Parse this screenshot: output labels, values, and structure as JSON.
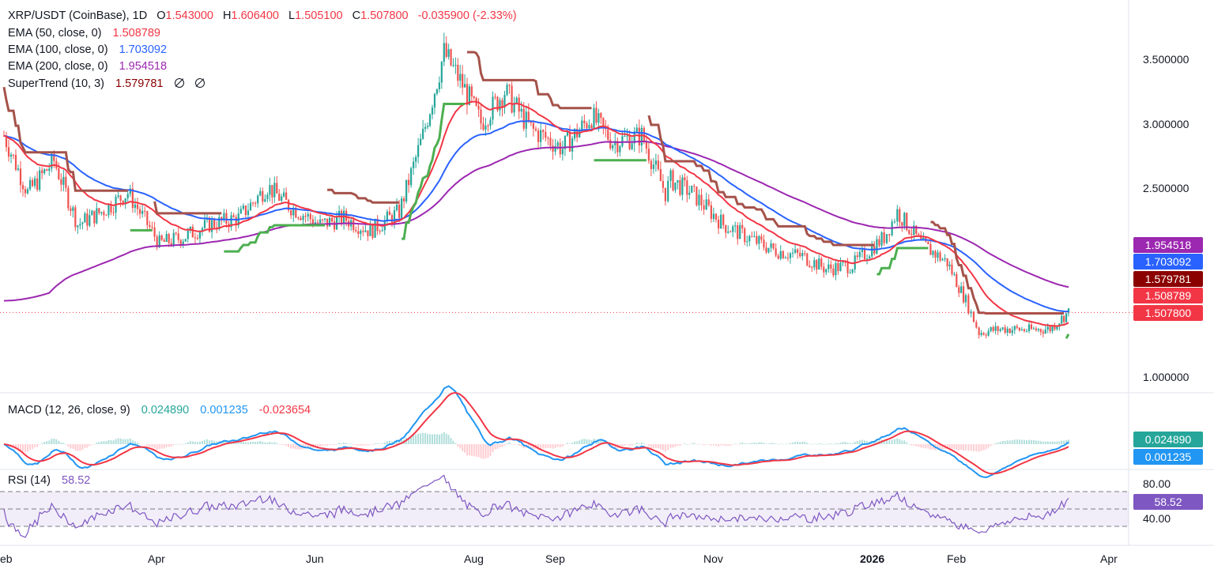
{
  "header": {
    "symbol": "XRP/USDT (CoinBase), 1D",
    "o_label": "O",
    "o_value": "1.543000",
    "h_label": "H",
    "h_value": "1.606400",
    "l_label": "L",
    "l_value": "1.505100",
    "c_label": "C",
    "c_value": "1.507800",
    "change": "-0.035900 (-2.33%)"
  },
  "indicators": {
    "ema50": {
      "label": "EMA (50, close, 0)",
      "value": "1.508789",
      "color": "#f23645"
    },
    "ema100": {
      "label": "EMA (100, close, 0)",
      "value": "1.703092",
      "color": "#2962ff"
    },
    "ema200": {
      "label": "EMA (200, close, 0)",
      "value": "1.954518",
      "color": "#9c27b0"
    },
    "supertrend": {
      "label": "SuperTrend (10, 3)",
      "value": "1.579781",
      "color": "#8b0000",
      "up_color": "#4caf50",
      "down_color": "#a5524a"
    }
  },
  "macd": {
    "label": "MACD (12, 26, close, 9)",
    "histogram": "0.024890",
    "macd_value": "0.001235",
    "signal_value": "-0.023654",
    "hist_color": "#26a69a",
    "macd_color": "#2196f3",
    "signal_color": "#f23645"
  },
  "rsi": {
    "label": "RSI (14)",
    "value": "58.52",
    "color": "#7e57c2"
  },
  "price_tags": {
    "ema200": "1.954518",
    "ema100": "1.703092",
    "supertrend": "1.579781",
    "ema50": "1.508789",
    "last": "1.507800"
  },
  "macd_tags": {
    "histogram": "0.024890",
    "macd": "0.001235"
  },
  "rsi_tag": "58.52",
  "price_axis": [
    "3.500000",
    "3.000000",
    "2.500000",
    "1.000000"
  ],
  "rsi_axis": [
    "80.00",
    "40.00"
  ],
  "time_axis": [
    "eb",
    "Apr",
    "Jun",
    "Aug",
    "Sep",
    "Nov",
    "2026",
    "Feb",
    "Apr"
  ],
  "colors": {
    "up": "#26a69a",
    "down": "#ef5350",
    "bg": "#ffffff"
  },
  "chart_data": {
    "type": "candlestick",
    "title": "XRP/USDT (CoinBase), 1D",
    "x": [
      "2025-02-01",
      "2025-02-10",
      "2025-02-20",
      "2025-03-01",
      "2025-03-10",
      "2025-03-20",
      "2025-04-01",
      "2025-04-10",
      "2025-04-20",
      "2025-05-01",
      "2025-05-12",
      "2025-05-20",
      "2025-06-01",
      "2025-06-10",
      "2025-06-20",
      "2025-07-01",
      "2025-07-10",
      "2025-07-18",
      "2025-07-25",
      "2025-08-01",
      "2025-08-10",
      "2025-08-20",
      "2025-09-01",
      "2025-09-12",
      "2025-09-20",
      "2025-10-01",
      "2025-10-10",
      "2025-10-12",
      "2025-10-20",
      "2025-11-01",
      "2025-11-10",
      "2025-11-20",
      "2025-12-01",
      "2025-12-10",
      "2025-12-20",
      "2026-01-01",
      "2026-01-06",
      "2026-01-15",
      "2026-01-25",
      "2026-02-01",
      "2026-02-06",
      "2026-02-15",
      "2026-02-25",
      "2026-03-05",
      "2026-03-12"
    ],
    "close": [
      2.9,
      2.45,
      2.7,
      2.2,
      2.3,
      2.45,
      2.05,
      2.1,
      2.2,
      2.25,
      2.5,
      2.35,
      2.2,
      2.25,
      2.15,
      2.3,
      2.9,
      3.55,
      3.3,
      3.0,
      3.25,
      2.95,
      2.8,
      3.05,
      2.85,
      2.9,
      2.45,
      2.55,
      2.45,
      2.2,
      2.1,
      2.0,
      1.95,
      1.85,
      1.88,
      2.1,
      2.3,
      2.05,
      1.9,
      1.6,
      1.35,
      1.38,
      1.37,
      1.38,
      1.51
    ],
    "ema50_last": 1.508789,
    "ema100_last": 1.703092,
    "ema200_last": 1.954518,
    "supertrend_last": 1.579781,
    "ohlc_last": {
      "open": 1.543,
      "high": 1.6064,
      "low": 1.5051,
      "close": 1.5078
    },
    "ylim": [
      0.95,
      3.75
    ],
    "macd": {
      "histogram_last": 0.02489,
      "macd_last": 0.001235,
      "signal_last": -0.023654
    },
    "rsi": {
      "last": 58.52,
      "upper": 70,
      "middle": 50,
      "lower": 30,
      "ylim": [
        20,
        90
      ]
    }
  }
}
